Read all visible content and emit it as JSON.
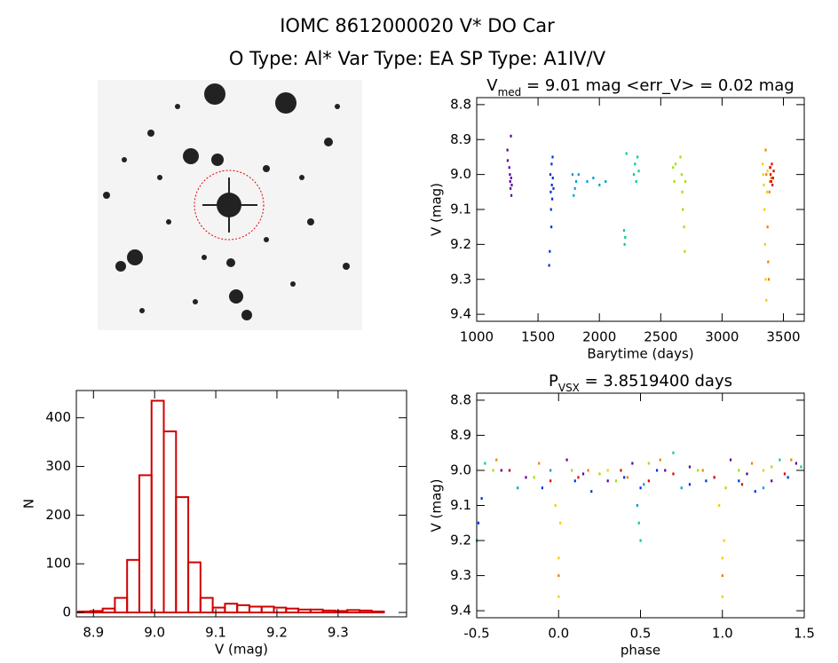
{
  "header": {
    "title": "IOMC 8612000020   V* DO Car",
    "subtitle": "O Type: Al*  Var Type: EA  SP Type: A1IV/V"
  },
  "chart_data": [
    {
      "type": "scatter",
      "title": [
        {
          "text": "V"
        },
        {
          "text": "med",
          "sub": true
        },
        {
          "text": " = 9.01 mag <err_V> = 0.02 mag"
        }
      ],
      "x_label": "Barytime (days)",
      "y_label": "V (mag)",
      "xlim": [
        1000,
        3670
      ],
      "xticks": [
        1000,
        1500,
        2000,
        2500,
        3000,
        3500
      ],
      "ylim": [
        9.42,
        8.78
      ],
      "yticks": [
        8.8,
        8.9,
        {
          "value": 9.0,
          "label": "9.0"
        },
        9.1,
        9.2,
        9.3,
        9.4
      ],
      "series": [
        {
          "name": "purple",
          "color": "#5a00a0",
          "x": [
            1250,
            1252,
            1265,
            1270,
            1272,
            1275,
            1278,
            1280,
            1282,
            1285
          ],
          "values": [
            8.93,
            8.96,
            8.98,
            9.0,
            9.02,
            9.04,
            8.89,
            9.01,
            9.06,
            9.03
          ]
        },
        {
          "name": "blue",
          "color": "#0030e0",
          "x": [
            1590,
            1595,
            1600,
            1603,
            1605,
            1608,
            1610,
            1612,
            1615,
            1618,
            1620,
            1625
          ],
          "values": [
            9.26,
            9.22,
            9.0,
            9.05,
            9.1,
            9.15,
            8.97,
            9.03,
            9.07,
            8.95,
            9.01,
            9.04
          ]
        },
        {
          "name": "cyan",
          "color": "#00a0d0",
          "x": [
            1780,
            1790,
            1800,
            1810,
            1830,
            1900,
            1950,
            2000,
            2050
          ],
          "values": [
            9.0,
            9.06,
            9.04,
            9.02,
            9.0,
            9.02,
            9.01,
            9.03,
            9.02
          ]
        },
        {
          "name": "green",
          "color": "#00d080",
          "x": [
            2200,
            2205,
            2210,
            2220,
            2280,
            2290,
            2300,
            2310,
            2320
          ],
          "values": [
            9.16,
            9.2,
            9.18,
            8.94,
            9.0,
            8.97,
            9.02,
            8.95,
            8.99
          ]
        },
        {
          "name": "yellowgreen",
          "color": "#a0e000",
          "x": [
            2600,
            2610,
            2620,
            2660,
            2670,
            2675,
            2680,
            2690,
            2695,
            2700
          ],
          "values": [
            8.98,
            9.02,
            8.97,
            8.95,
            9.0,
            9.05,
            9.1,
            9.15,
            9.22,
            9.02
          ]
        },
        {
          "name": "yellow",
          "color": "#f0d000",
          "x": [
            3330,
            3335,
            3340,
            3345,
            3350,
            3355,
            3360,
            3365,
            3370
          ],
          "values": [
            8.97,
            9.0,
            9.03,
            9.1,
            9.2,
            9.3,
            9.36,
            9.05,
            8.99
          ]
        },
        {
          "name": "orange",
          "color": "#f08000",
          "x": [
            3355,
            3360,
            3370,
            3375,
            3380,
            3385,
            3390,
            3395,
            3400
          ],
          "values": [
            8.93,
            9.0,
            9.15,
            9.25,
            9.3,
            9.05,
            9.02,
            8.98,
            9.01
          ]
        },
        {
          "name": "red",
          "color": "#e00000",
          "x": [
            3390,
            3395,
            3400,
            3405,
            3410,
            3415,
            3420
          ],
          "values": [
            8.98,
            9.0,
            9.02,
            8.97,
            9.03,
            9.01,
            8.99
          ]
        }
      ]
    },
    {
      "type": "histogram",
      "x_label": "V (mag)",
      "y_label": "N",
      "color": "#d00000",
      "xlim": [
        8.872,
        9.412
      ],
      "xticks": [
        8.9,
        {
          "value": 9.0,
          "label": "9.0"
        },
        9.1,
        9.2,
        9.3
      ],
      "ylim": [
        -9,
        456
      ],
      "yticks": [
        0,
        100,
        200,
        300,
        400
      ],
      "bins": [
        8.875,
        8.895,
        8.915,
        8.935,
        8.955,
        8.975,
        8.995,
        9.015,
        9.035,
        9.055,
        9.075,
        9.095,
        9.115,
        9.135,
        9.155,
        9.175,
        9.195,
        9.215,
        9.235,
        9.255,
        9.275,
        9.295,
        9.315,
        9.335,
        9.355,
        9.375
      ],
      "values": [
        2,
        3,
        8,
        30,
        108,
        282,
        435,
        372,
        237,
        103,
        30,
        10,
        18,
        15,
        12,
        12,
        10,
        8,
        6,
        6,
        4,
        3,
        5,
        4,
        2
      ]
    },
    {
      "type": "scatter",
      "title": [
        {
          "text": "P"
        },
        {
          "text": "VSX",
          "sub": true
        },
        {
          "text": " = 3.8519400 days"
        }
      ],
      "x_label": "phase",
      "y_label": "V (mag)",
      "xlim": [
        -0.5,
        1.5
      ],
      "xticks": [
        -0.5,
        {
          "value": 0.0,
          "label": "0.0"
        },
        0.5,
        {
          "value": 1.0,
          "label": "1.0"
        },
        1.5
      ],
      "ylim": [
        9.42,
        8.78
      ],
      "yticks": [
        8.8,
        8.9,
        {
          "value": 9.0,
          "label": "9.0"
        },
        9.1,
        9.2,
        9.3,
        9.4
      ],
      "series": [
        {
          "name": "purple",
          "color": "#5a00a0",
          "x": [
            -0.35,
            -0.2,
            0.05,
            0.15,
            0.3,
            0.45,
            0.65,
            0.8,
            1.05,
            1.15,
            1.3,
            1.45
          ],
          "values": [
            9.0,
            9.02,
            8.97,
            9.01,
            9.03,
            8.98,
            9.0,
            8.99,
            8.97,
            9.01,
            9.03,
            8.98
          ]
        },
        {
          "name": "blue",
          "color": "#0030e0",
          "x": [
            -0.49,
            -0.47,
            -0.3,
            -0.1,
            0.1,
            0.2,
            0.4,
            0.5,
            0.6,
            0.8,
            0.9,
            1.1,
            1.2,
            1.4
          ],
          "values": [
            9.15,
            9.08,
            9.0,
            9.05,
            9.03,
            9.06,
            9.02,
            9.05,
            9.0,
            9.04,
            9.03,
            9.03,
            9.06,
            9.02
          ]
        },
        {
          "name": "cyan",
          "color": "#00a0d0",
          "x": [
            -0.25,
            -0.05,
            0.48,
            0.52,
            0.75,
            0.95,
            1.25
          ],
          "values": [
            9.05,
            9.0,
            9.1,
            9.04,
            9.05,
            9.02,
            9.05
          ]
        },
        {
          "name": "green",
          "color": "#00d080",
          "x": [
            -0.5,
            -0.45,
            0.49,
            0.5,
            0.7,
            1.35,
            1.48
          ],
          "values": [
            9.2,
            8.98,
            9.15,
            9.2,
            8.95,
            8.97,
            8.99
          ]
        },
        {
          "name": "yellowgreen",
          "color": "#a0e000",
          "x": [
            -0.4,
            -0.15,
            0.08,
            0.25,
            0.35,
            0.55,
            0.85,
            1.02,
            1.1,
            1.3
          ],
          "values": [
            9.0,
            9.02,
            9.0,
            9.01,
            9.03,
            8.98,
            9.0,
            9.05,
            9.0,
            8.99
          ]
        },
        {
          "name": "yellow",
          "color": "#f0d000",
          "x": [
            -0.02,
            0.0,
            0.0,
            0.01,
            0.3,
            0.98,
            1.0,
            1.0,
            1.01,
            1.25
          ],
          "values": [
            9.1,
            9.25,
            9.36,
            9.15,
            9.0,
            9.1,
            9.25,
            9.36,
            9.2,
            9.0
          ]
        },
        {
          "name": "orange",
          "color": "#f08000",
          "x": [
            -0.38,
            -0.12,
            0.0,
            0.18,
            0.42,
            0.62,
            0.88,
            1.0,
            1.18,
            1.42
          ],
          "values": [
            8.97,
            8.98,
            9.3,
            9.0,
            9.02,
            8.97,
            9.0,
            9.3,
            8.98,
            8.97
          ]
        },
        {
          "name": "red",
          "color": "#e00000",
          "x": [
            -0.3,
            -0.05,
            0.12,
            0.38,
            0.55,
            0.7,
            0.95,
            1.12,
            1.38
          ],
          "values": [
            9.0,
            9.03,
            9.02,
            9.0,
            9.03,
            9.01,
            9.02,
            9.04,
            9.01
          ]
        }
      ]
    }
  ]
}
